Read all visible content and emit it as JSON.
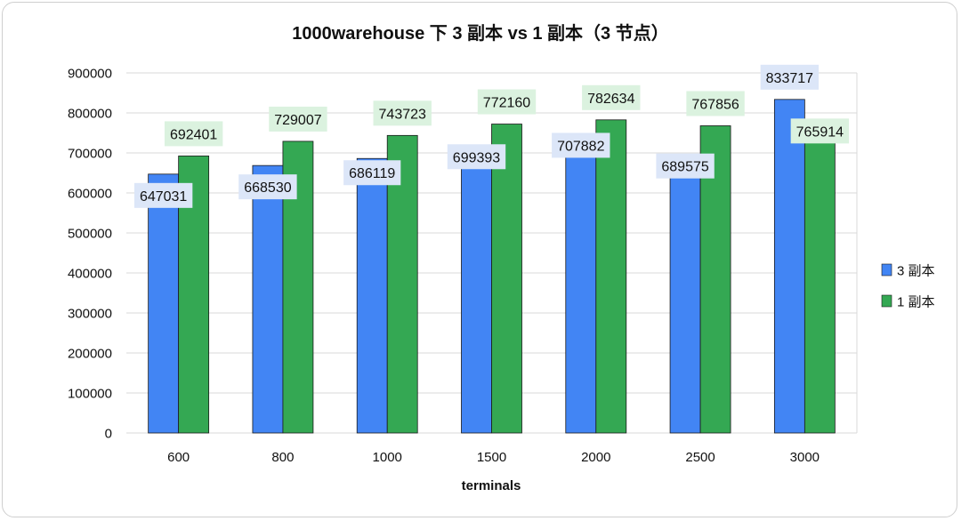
{
  "chart_data": {
    "type": "bar",
    "title": "1000warehouse 下 3 副本 vs 1 副本（3 节点）",
    "xlabel": "terminals",
    "ylabel": "",
    "categories": [
      "600",
      "800",
      "1000",
      "1500",
      "2000",
      "2500",
      "3000"
    ],
    "ylim": [
      0,
      900000
    ],
    "yticks": [
      "0",
      "100000",
      "200000",
      "300000",
      "400000",
      "500000",
      "600000",
      "700000",
      "800000",
      "900000"
    ],
    "grid": true,
    "legend_position": "right",
    "series": [
      {
        "name": "3 副本",
        "color": "#4285F4",
        "label_bg": "#dce6f8",
        "values": [
          647031,
          668530,
          686119,
          699393,
          707882,
          689575,
          833717
        ]
      },
      {
        "name": "1 副本",
        "color": "#34A853",
        "label_bg": "#dbf2df",
        "values": [
          692401,
          729007,
          743723,
          772160,
          782634,
          767856,
          765914
        ]
      }
    ]
  }
}
